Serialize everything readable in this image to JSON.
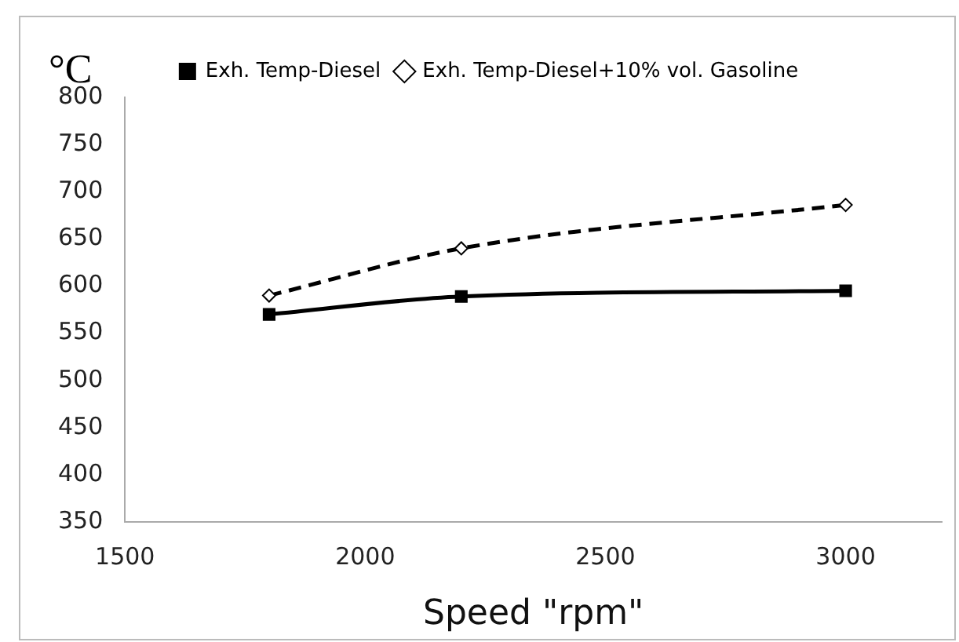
{
  "chart_data": {
    "type": "line",
    "xlabel": "Speed \"rpm\"",
    "ylabel": "°C",
    "x": [
      1800,
      2200,
      3000
    ],
    "series": [
      {
        "name": "Exh. Temp-Diesel",
        "color": "#000000",
        "values": [
          570,
          589,
          595
        ],
        "marker": "square",
        "line_style": "solid"
      },
      {
        "name": "Exh. Temp-Diesel+10% vol. Gasoline",
        "color": "#000000",
        "values": [
          590,
          640,
          686
        ],
        "marker": "diamond",
        "line_style": "dashed"
      }
    ],
    "xlim": [
      1500,
      3200
    ],
    "xticks": [
      1500,
      2000,
      2500,
      3000
    ],
    "ylim": [
      350,
      800
    ],
    "yticks": [
      350,
      400,
      450,
      500,
      550,
      600,
      650,
      700,
      750,
      800
    ],
    "grid": false,
    "legend": "top"
  }
}
